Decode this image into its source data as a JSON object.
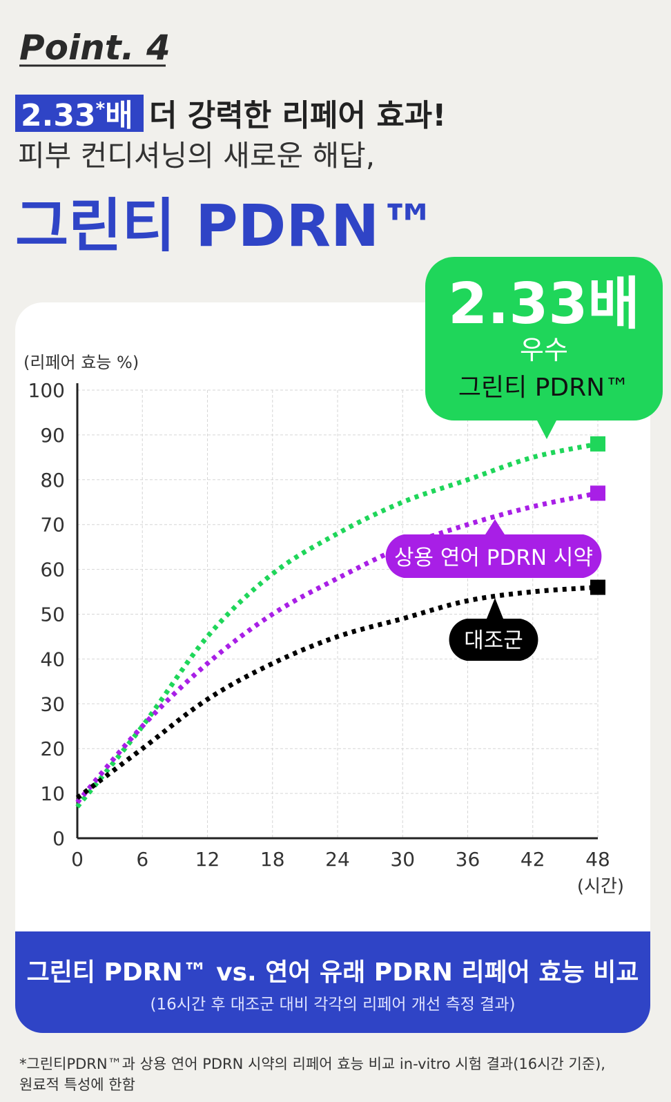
{
  "header": {
    "point": "Point. 4",
    "highlight": "2.33",
    "highlight_mark": "*",
    "highlight_unit": "배",
    "headline": "더 강력한 리페어 효과!",
    "subtitle": "피부 컨디셔닝의 새로운 해답,",
    "brand": "그린티 PDRN™"
  },
  "chart_data": {
    "type": "line",
    "y_label": "(리페어 효능 %)",
    "x_label": "(시간)",
    "x": [
      0,
      6,
      12,
      18,
      24,
      30,
      36,
      42,
      48
    ],
    "xlim": [
      0,
      48
    ],
    "xticks": [
      0,
      6,
      12,
      18,
      24,
      30,
      36,
      42,
      48
    ],
    "ylim": [
      0,
      100
    ],
    "yticks": [
      0,
      10,
      20,
      30,
      40,
      50,
      60,
      70,
      80,
      90,
      100
    ],
    "grid": true,
    "series": [
      {
        "name": "그린티 PDRN™",
        "color": "#1fd65a",
        "values": [
          7,
          25,
          45,
          59,
          68,
          75,
          80,
          85,
          88
        ]
      },
      {
        "name": "상용 연어 PDRN 시약",
        "color": "#a81fe6",
        "values": [
          8,
          25,
          39,
          50,
          58,
          65,
          70,
          74,
          77
        ]
      },
      {
        "name": "대조군",
        "color": "#000000",
        "values": [
          9,
          20,
          31,
          39,
          45,
          49,
          53,
          55,
          56
        ]
      }
    ],
    "annotations": [
      "2.33배",
      "우수"
    ],
    "caption": "그린티 PDRN™ vs. 연어 유래 PDRN 리페어 효능 비교",
    "caption_note": "(16시간 후 대조군 대비 각각의 리페어 개선 측정 결과)"
  },
  "footnote": [
    "*그린티PDRN™과 상용 연어 PDRN 시약의 리페어 효능 비교 in-vitro 시험 결과(16시간 기준),",
    "원료적 특성에 한함"
  ]
}
